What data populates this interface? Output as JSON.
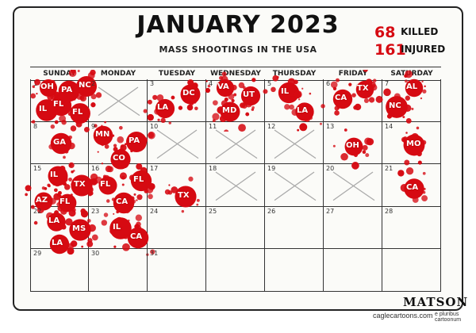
{
  "title": "JANUARY 2023",
  "subtitle": "MASS SHOOTINGS IN THE USA",
  "stats": {
    "killed": {
      "number": "68",
      "label": "KILLED"
    },
    "injured": {
      "number": "161",
      "label": "INJURED"
    }
  },
  "weekdays": [
    "SUNDAY",
    "MONDAY",
    "TUESDAY",
    "WEDNESDAY",
    "THURSDAY",
    "FRIDAY",
    "SATURDAY"
  ],
  "days": [
    {
      "n": "1",
      "states": [
        "OH",
        "PA",
        "NC",
        "IL",
        "FL",
        "FL"
      ]
    },
    {
      "n": "2",
      "states": []
    },
    {
      "n": "3",
      "states": [
        "LA",
        "DC"
      ]
    },
    {
      "n": "4",
      "states": [
        "VA",
        "UT",
        "MD"
      ]
    },
    {
      "n": "5",
      "states": [
        "IL",
        "LA"
      ]
    },
    {
      "n": "6",
      "states": [
        "CA",
        "TX"
      ]
    },
    {
      "n": "7",
      "states": [
        "AL",
        "NC"
      ]
    },
    {
      "n": "8",
      "states": [
        "GA"
      ]
    },
    {
      "n": "9",
      "states": [
        "MN",
        "PA",
        "CO"
      ]
    },
    {
      "n": "10",
      "states": []
    },
    {
      "n": "11",
      "states": []
    },
    {
      "n": "12",
      "states": []
    },
    {
      "n": "13",
      "states": [
        "OH"
      ]
    },
    {
      "n": "14",
      "states": [
        "MO"
      ]
    },
    {
      "n": "15",
      "states": [
        "IL",
        "TX",
        "AZ",
        "FL"
      ]
    },
    {
      "n": "16",
      "states": [
        "FL",
        "FL",
        "CA"
      ]
    },
    {
      "n": "17",
      "states": [
        "TX"
      ]
    },
    {
      "n": "18",
      "states": []
    },
    {
      "n": "19",
      "states": []
    },
    {
      "n": "20",
      "states": []
    },
    {
      "n": "21",
      "states": [
        "CA"
      ]
    },
    {
      "n": "22",
      "states": [
        "LA",
        "MS",
        "LA"
      ]
    },
    {
      "n": "23",
      "states": [
        "IL",
        "CA"
      ]
    },
    {
      "n": "24",
      "states": []
    },
    {
      "n": "25",
      "states": []
    },
    {
      "n": "26",
      "states": []
    },
    {
      "n": "27",
      "states": []
    },
    {
      "n": "28",
      "states": []
    },
    {
      "n": "29",
      "states": []
    },
    {
      "n": "30",
      "states": []
    },
    {
      "n": "31",
      "states": []
    }
  ],
  "crossed_out_days": [
    "2",
    "10",
    "11",
    "12",
    "18",
    "19",
    "20"
  ],
  "signature": "MATSON",
  "credit": "caglecartoons.com",
  "credit_motto": "e pluribus cartoonum",
  "colors": {
    "blood": "#d60a12",
    "ink": "#111111",
    "paper": "#fbfbf8"
  }
}
